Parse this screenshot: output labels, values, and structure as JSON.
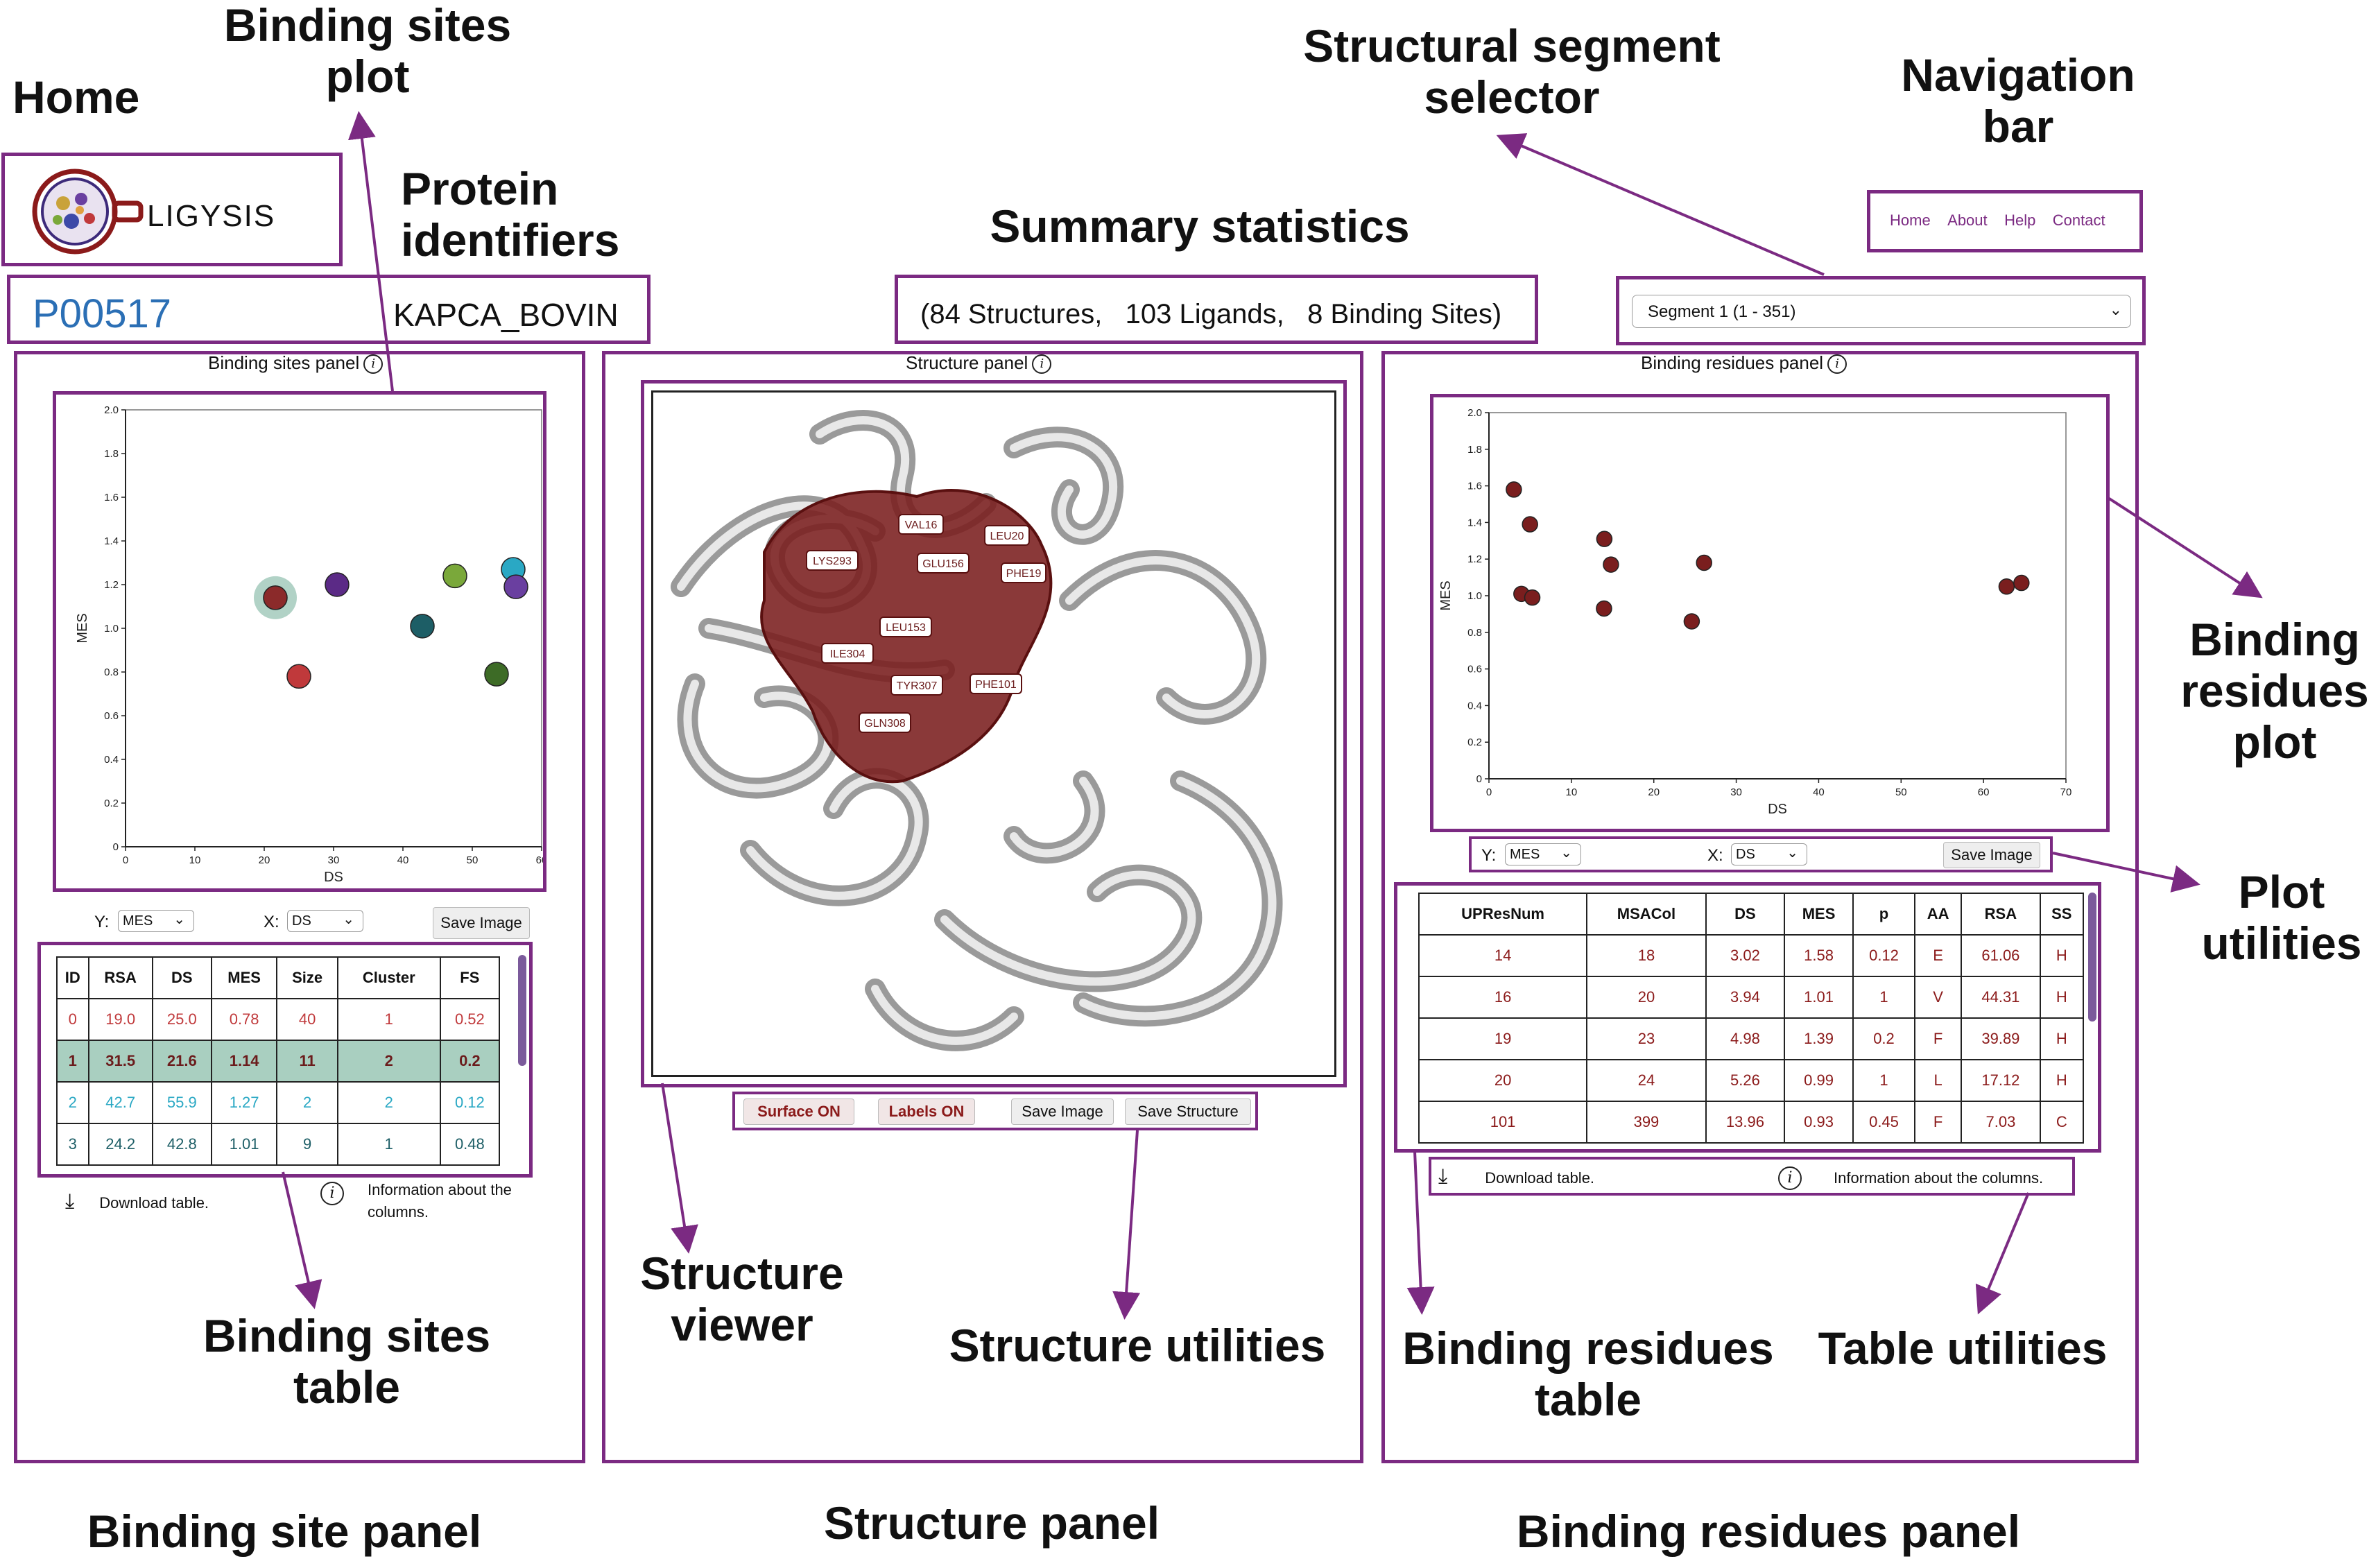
{
  "annotations": {
    "home": "Home",
    "binding_sites_plot": "Binding sites\nplot",
    "protein_identifiers": "Protein\nidentifiers",
    "summary_statistics": "Summary statistics",
    "structural_segment_selector": "Structural segment\nselector",
    "navigation_bar": "Navigation\nbar",
    "binding_residues_plot": "Binding\nresidues\nplot",
    "plot_utilities": "Plot\nutilities",
    "binding_sites_table": "Binding sites\ntable",
    "structure_viewer": "Structure\nviewer",
    "structure_utilities": "Structure utilities",
    "binding_residues_table": "Binding residues\ntable",
    "table_utilities": "Table utilities",
    "binding_site_panel": "Binding site panel",
    "structure_panel": "Structure panel",
    "binding_residues_panel": "Binding residues panel"
  },
  "logo": {
    "text": "LIGYSIS"
  },
  "protein": {
    "accession": "P00517",
    "name": "KAPCA_BOVIN"
  },
  "summary": {
    "text": "(84 Structures,   103 Ligands,   8 Binding Sites)"
  },
  "nav": {
    "items": [
      "Home",
      "About",
      "Help",
      "Contact"
    ]
  },
  "segment_selector": {
    "value": "Segment 1 (1 - 351)"
  },
  "sites_panel": {
    "title": "Binding sites panel",
    "y_label": "Y:",
    "y_value": "MES",
    "x_label": "X:",
    "x_value": "DS",
    "save_image": "Save Image",
    "download": "Download table.",
    "info": "Information about the\ncolumns.",
    "table": {
      "headers": [
        "ID",
        "RSA",
        "DS",
        "MES",
        "Size",
        "Cluster",
        "FS"
      ],
      "rows": [
        [
          "0",
          "19.0",
          "25.0",
          "0.78",
          "40",
          "1",
          "0.52"
        ],
        [
          "1",
          "31.5",
          "21.6",
          "1.14",
          "11",
          "2",
          "0.2"
        ],
        [
          "2",
          "42.7",
          "55.9",
          "1.27",
          "2",
          "2",
          "0.12"
        ],
        [
          "3",
          "24.2",
          "42.8",
          "1.01",
          "9",
          "1",
          "0.48"
        ]
      ],
      "row_colors": [
        "#c0393b",
        "#6b1c1c",
        "#2aa8c4",
        "#1d5e66"
      ]
    }
  },
  "structure_panel": {
    "title": "Structure panel",
    "surface_btn": "Surface ON",
    "labels_btn": "Labels ON",
    "save_image": "Save Image",
    "save_structure": "Save Structure",
    "residue_labels": [
      "VAL16",
      "LEU20",
      "LYS293",
      "GLU156",
      "PHE19",
      "LEU153",
      "ILE304",
      "TYR307",
      "PHE101",
      "GLN308"
    ]
  },
  "residues_panel": {
    "title": "Binding residues panel",
    "y_label": "Y:",
    "y_value": "MES",
    "x_label": "X:",
    "x_value": "DS",
    "save_image": "Save Image",
    "download": "Download table.",
    "info": "Information about the columns.",
    "table": {
      "headers": [
        "UPResNum",
        "MSACol",
        "DS",
        "MES",
        "p",
        "AA",
        "RSA",
        "SS"
      ],
      "rows": [
        [
          "14",
          "18",
          "3.02",
          "1.58",
          "0.12",
          "E",
          "61.06",
          "H"
        ],
        [
          "16",
          "20",
          "3.94",
          "1.01",
          "1",
          "V",
          "44.31",
          "H"
        ],
        [
          "19",
          "23",
          "4.98",
          "1.39",
          "0.2",
          "F",
          "39.89",
          "H"
        ],
        [
          "20",
          "24",
          "5.26",
          "0.99",
          "1",
          "L",
          "17.12",
          "H"
        ],
        [
          "101",
          "399",
          "13.96",
          "0.93",
          "0.45",
          "F",
          "7.03",
          "C"
        ]
      ]
    }
  },
  "chart_data": [
    {
      "type": "scatter",
      "title": "Binding sites plot",
      "xlabel": "DS",
      "ylabel": "MES",
      "xlim": [
        0,
        60
      ],
      "ylim": [
        0,
        2.0
      ],
      "xticks": [
        "0",
        "10",
        "20",
        "30",
        "40",
        "50",
        "60"
      ],
      "yticks": [
        "0",
        "0.2",
        "0.4",
        "0.6",
        "0.8",
        "1.0",
        "1.2",
        "1.4",
        "1.6",
        "1.8",
        "2.0"
      ],
      "points": [
        {
          "x": 25.0,
          "y": 0.78,
          "color": "#c0393b"
        },
        {
          "x": 21.6,
          "y": 1.14,
          "color": "#8b2a2a",
          "highlight": true
        },
        {
          "x": 30.5,
          "y": 1.2,
          "color": "#5b2a86"
        },
        {
          "x": 42.8,
          "y": 1.01,
          "color": "#1d5e66"
        },
        {
          "x": 47.5,
          "y": 1.24,
          "color": "#7aa83a"
        },
        {
          "x": 53.5,
          "y": 0.79,
          "color": "#3d6b26"
        },
        {
          "x": 55.9,
          "y": 1.27,
          "color": "#2aa8c4"
        },
        {
          "x": 56.3,
          "y": 1.19,
          "color": "#6a3fa0"
        }
      ]
    },
    {
      "type": "scatter",
      "title": "Binding residues plot",
      "xlabel": "DS",
      "ylabel": "MES",
      "xlim": [
        0,
        70
      ],
      "ylim": [
        0,
        2.0
      ],
      "xticks": [
        "0",
        "10",
        "20",
        "30",
        "40",
        "50",
        "60",
        "70"
      ],
      "yticks": [
        "0",
        "0.2",
        "0.4",
        "0.6",
        "0.8",
        "1.0",
        "1.2",
        "1.4",
        "1.6",
        "1.8",
        "2.0"
      ],
      "points": [
        {
          "x": 3.02,
          "y": 1.58
        },
        {
          "x": 3.94,
          "y": 1.01
        },
        {
          "x": 4.98,
          "y": 1.39
        },
        {
          "x": 5.26,
          "y": 0.99
        },
        {
          "x": 13.96,
          "y": 0.93
        },
        {
          "x": 14.0,
          "y": 1.31
        },
        {
          "x": 14.8,
          "y": 1.17
        },
        {
          "x": 24.6,
          "y": 0.86
        },
        {
          "x": 26.1,
          "y": 1.18
        },
        {
          "x": 62.8,
          "y": 1.05
        },
        {
          "x": 64.6,
          "y": 1.07
        }
      ],
      "color": "#7a1e1e"
    }
  ]
}
